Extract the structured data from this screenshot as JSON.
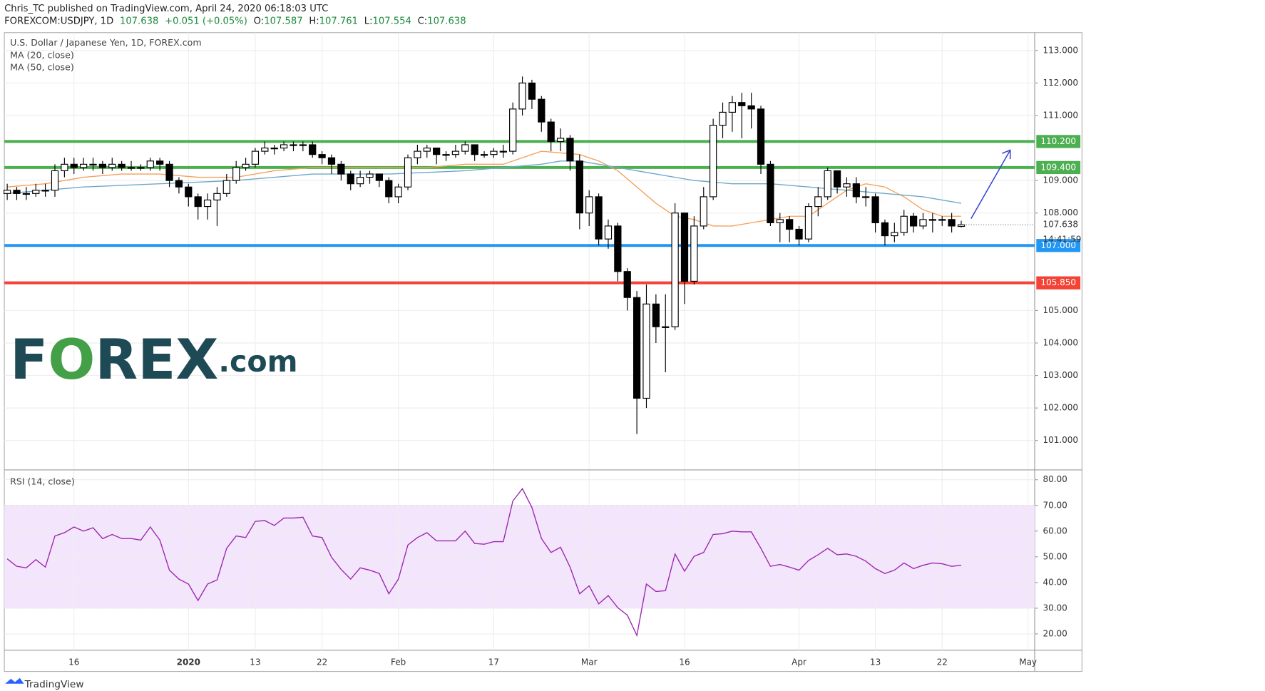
{
  "header": {
    "publisher": "Chris_TC published on TradingView.com, April 24, 2020 06:18:03 UTC",
    "symbol": "FOREXCOM:USDJPY, 1D",
    "change": "+0.051 (+0.05%)",
    "ohlc_labels": [
      "O:",
      "H:",
      "L:",
      "C:"
    ]
  },
  "logo": [
    "F",
    "O",
    "REX",
    ".com"
  ],
  "footer": "TradingView",
  "chart_data": [
    {
      "type": "candlestick",
      "title": "U.S. Dollar / Japanese Yen, 1D, FOREX.com",
      "open": [
        108.6,
        108.7,
        108.6,
        108.6,
        108.7,
        108.7,
        109.3,
        109.5,
        109.4,
        109.5,
        109.5,
        109.4,
        109.5,
        109.4,
        109.4,
        109.4,
        109.6,
        109.5,
        109.0,
        108.8,
        108.5,
        108.2,
        108.4,
        108.6,
        109.0,
        109.4,
        109.5,
        109.9,
        110.0,
        110.0,
        110.1,
        110.1,
        110.1,
        109.8,
        109.7,
        109.5,
        109.2,
        108.9,
        109.1,
        109.2,
        109.0,
        108.5,
        108.8,
        109.7,
        109.9,
        110.0,
        109.8,
        109.8,
        109.9,
        110.1,
        109.8,
        109.8,
        109.9,
        109.9,
        111.2,
        112.0,
        111.5,
        110.8,
        110.2,
        110.3,
        109.6,
        108.0,
        108.5,
        107.2,
        107.6,
        106.2,
        105.4,
        102.3,
        105.2,
        104.5,
        104.5,
        108.0,
        105.9,
        107.6,
        108.5,
        110.7,
        111.1,
        111.4,
        111.3,
        111.2,
        109.5,
        107.7,
        107.8,
        107.5,
        107.2,
        108.2,
        108.5,
        109.3,
        108.8,
        108.9,
        108.5,
        108.5,
        107.7,
        107.3,
        107.4,
        107.9,
        107.6,
        107.8,
        107.8,
        107.8,
        107.587
      ],
      "high": [
        108.9,
        108.8,
        108.8,
        108.9,
        108.9,
        109.5,
        109.7,
        109.7,
        109.7,
        109.7,
        109.6,
        109.7,
        109.6,
        109.6,
        109.5,
        109.7,
        109.7,
        109.6,
        109.1,
        108.9,
        108.6,
        108.6,
        108.8,
        109.2,
        109.6,
        109.7,
        110.0,
        110.2,
        110.1,
        110.2,
        110.2,
        110.2,
        110.2,
        109.9,
        109.8,
        109.6,
        109.3,
        109.3,
        109.3,
        109.2,
        109.1,
        108.9,
        109.8,
        110.1,
        110.1,
        110.0,
        109.9,
        110.1,
        110.2,
        110.1,
        109.9,
        110.0,
        110.1,
        111.4,
        112.2,
        112.1,
        111.6,
        110.9,
        110.6,
        110.4,
        109.8,
        108.7,
        108.6,
        107.8,
        107.7,
        106.3,
        105.6,
        105.8,
        105.5,
        105.5,
        108.3,
        108.0,
        107.9,
        108.8,
        110.9,
        111.4,
        111.6,
        111.7,
        111.7,
        111.3,
        109.6,
        108.0,
        107.9,
        107.6,
        108.3,
        108.8,
        109.4,
        109.3,
        109.1,
        109.1,
        108.8,
        108.6,
        107.8,
        107.7,
        108.1,
        108.0,
        108.0,
        108.0,
        107.9,
        108.0,
        107.761
      ],
      "low": [
        108.4,
        108.4,
        108.4,
        108.5,
        108.5,
        108.5,
        109.1,
        109.2,
        109.3,
        109.3,
        109.2,
        109.3,
        109.3,
        109.3,
        109.3,
        109.3,
        109.3,
        108.8,
        108.6,
        108.2,
        107.8,
        107.8,
        107.6,
        108.5,
        108.9,
        109.3,
        109.4,
        109.8,
        109.8,
        109.9,
        109.9,
        109.9,
        109.7,
        109.5,
        109.2,
        109.0,
        108.7,
        108.8,
        108.9,
        108.8,
        108.3,
        108.3,
        108.7,
        109.5,
        109.7,
        109.5,
        109.6,
        109.7,
        109.8,
        109.6,
        109.7,
        109.7,
        109.7,
        109.8,
        111.0,
        111.2,
        110.5,
        109.9,
        109.9,
        109.3,
        107.5,
        107.6,
        107.0,
        106.9,
        105.9,
        105.0,
        101.2,
        102.0,
        104.0,
        103.1,
        104.4,
        105.2,
        105.8,
        107.5,
        108.4,
        110.3,
        110.5,
        110.3,
        110.6,
        109.2,
        107.6,
        107.1,
        107.1,
        107.0,
        107.1,
        107.9,
        108.4,
        108.6,
        108.5,
        108.3,
        108.2,
        107.4,
        107.0,
        107.1,
        107.3,
        107.4,
        107.5,
        107.4,
        107.6,
        107.4,
        107.554
      ],
      "close": [
        108.7,
        108.6,
        108.6,
        108.7,
        108.7,
        109.3,
        109.5,
        109.4,
        109.5,
        109.5,
        109.4,
        109.5,
        109.4,
        109.4,
        109.4,
        109.6,
        109.5,
        109.0,
        108.8,
        108.5,
        108.2,
        108.4,
        108.6,
        109.0,
        109.4,
        109.5,
        109.9,
        110.0,
        110.0,
        110.1,
        110.1,
        110.1,
        109.8,
        109.7,
        109.5,
        109.2,
        108.9,
        109.1,
        109.2,
        109.0,
        108.5,
        108.8,
        109.7,
        109.9,
        110.0,
        109.8,
        109.8,
        109.9,
        110.1,
        109.8,
        109.8,
        109.9,
        109.9,
        111.2,
        112.0,
        111.5,
        110.8,
        110.2,
        110.3,
        109.6,
        108.0,
        108.5,
        107.2,
        107.6,
        106.2,
        105.4,
        102.3,
        105.2,
        104.5,
        104.5,
        108.0,
        105.9,
        107.6,
        108.5,
        110.7,
        111.1,
        111.4,
        111.3,
        111.2,
        109.5,
        107.7,
        107.8,
        107.5,
        107.2,
        108.2,
        108.5,
        109.3,
        108.8,
        108.9,
        108.5,
        108.5,
        107.7,
        107.3,
        107.4,
        107.9,
        107.6,
        107.8,
        107.8,
        107.8,
        107.6,
        107.638
      ],
      "up_color": "#ffffff",
      "down_color": "#000000",
      "series": [
        {
          "name": "MA (20, close)",
          "color": "#f5a05a",
          "x": [
            0,
            4,
            8,
            12,
            16,
            20,
            24,
            28,
            32,
            36,
            40,
            44,
            48,
            52,
            56,
            60,
            62,
            64,
            66,
            68,
            70,
            72,
            74,
            76,
            78,
            80,
            82,
            84,
            86,
            88,
            90,
            92,
            94,
            96,
            98,
            100
          ],
          "values": [
            108.8,
            108.9,
            109.1,
            109.2,
            109.2,
            109.1,
            109.1,
            109.3,
            109.4,
            109.4,
            109.4,
            109.4,
            109.5,
            109.5,
            109.9,
            109.8,
            109.6,
            109.3,
            108.8,
            108.3,
            107.9,
            107.8,
            107.6,
            107.6,
            107.7,
            107.8,
            107.9,
            107.9,
            108.3,
            108.7,
            108.9,
            108.8,
            108.5,
            108.1,
            107.9,
            107.9
          ]
        },
        {
          "name": "MA (50, close)",
          "color": "#6fa8c8",
          "x": [
            0,
            8,
            16,
            24,
            32,
            40,
            48,
            52,
            56,
            58,
            60,
            64,
            68,
            72,
            76,
            80,
            84,
            88,
            92,
            96,
            100
          ],
          "values": [
            108.6,
            108.8,
            108.9,
            109.0,
            109.2,
            109.2,
            109.3,
            109.4,
            109.5,
            109.6,
            109.6,
            109.4,
            109.2,
            109.0,
            108.9,
            108.9,
            108.8,
            108.7,
            108.6,
            108.5,
            108.3
          ]
        }
      ],
      "levels": [
        {
          "value": 110.2,
          "label": "110.200",
          "color": "#4caf50"
        },
        {
          "value": 109.4,
          "label": "109.400",
          "color": "#4caf50"
        },
        {
          "value": 107,
          "label": "107.000",
          "color": "#2196f3"
        },
        {
          "value": 105.85,
          "label": "105.850",
          "color": "#f44336"
        }
      ],
      "countdown": "14:41:59",
      "ylim": [
        100.12,
        113.55
      ],
      "yticks": [
        {
          "value": 113,
          "label": "113.000"
        },
        {
          "value": 112,
          "label": "112.000"
        },
        {
          "value": 111,
          "label": "111.000"
        },
        {
          "value": 109,
          "label": "109.000"
        },
        {
          "value": 108,
          "label": "108.000"
        },
        {
          "value": 105,
          "label": "105.000"
        },
        {
          "value": 104,
          "label": "104.000"
        },
        {
          "value": 103,
          "label": "103.000"
        },
        {
          "value": 102,
          "label": "102.000"
        },
        {
          "value": 101,
          "label": "101.000"
        }
      ],
      "grid": true
    },
    {
      "type": "line",
      "title": "RSI (14, close)",
      "series": [
        {
          "color": "#9c27b0",
          "values": [
            49.2,
            46.3,
            45.7,
            48.9,
            46.0,
            58.1,
            59.4,
            61.6,
            60.0,
            61.3,
            57.1,
            58.7,
            57.1,
            57.1,
            56.5,
            61.6,
            56.5,
            44.8,
            41.3,
            39.4,
            33.0,
            39.4,
            41.0,
            53.3,
            58.1,
            57.5,
            63.8,
            64.1,
            62.2,
            65.1,
            65.1,
            65.4,
            58.1,
            57.5,
            49.8,
            45.1,
            41.3,
            45.7,
            44.8,
            43.5,
            35.6,
            41.3,
            54.6,
            57.5,
            59.4,
            56.2,
            56.2,
            56.2,
            60.0,
            55.2,
            54.9,
            55.9,
            55.9,
            71.7,
            76.5,
            69.2,
            57.1,
            51.7,
            53.7,
            46.0,
            35.6,
            38.7,
            31.7,
            34.9,
            30.2,
            27.3,
            19.4,
            39.4,
            36.5,
            36.8,
            51.1,
            44.4,
            50.2,
            51.7,
            58.7,
            59.0,
            60.0,
            59.7,
            59.7,
            53.3,
            46.3,
            47.0,
            46.0,
            44.8,
            48.6,
            50.8,
            53.3,
            50.8,
            51.1,
            50.2,
            48.3,
            45.4,
            43.5,
            44.8,
            47.6,
            45.4,
            46.7,
            47.6,
            47.3,
            46.3,
            46.7
          ]
        }
      ],
      "band": [
        30,
        70
      ],
      "band_color": "#f3e5fb",
      "ylim": [
        13.65,
        83.5
      ],
      "yticks": [
        {
          "value": 80,
          "label": "80.00"
        },
        {
          "value": 70,
          "label": "70.00"
        },
        {
          "value": 60,
          "label": "60.00"
        },
        {
          "value": 50,
          "label": "50.00"
        },
        {
          "value": 40,
          "label": "40.00"
        },
        {
          "value": 30,
          "label": "30.00"
        },
        {
          "value": 20,
          "label": "20.00"
        }
      ],
      "xlim": [
        -0.3,
        107.7
      ],
      "xticks": [
        {
          "value": 7,
          "label": "16"
        },
        {
          "value": 19,
          "label": "2020"
        },
        {
          "value": 26,
          "label": "13"
        },
        {
          "value": 33,
          "label": "22"
        },
        {
          "value": 41,
          "label": "Feb"
        },
        {
          "value": 51,
          "label": "17"
        },
        {
          "value": 61,
          "label": "Mar"
        },
        {
          "value": 71,
          "label": "16"
        },
        {
          "value": 83,
          "label": "Apr"
        },
        {
          "value": 91,
          "label": "13"
        },
        {
          "value": 98,
          "label": "22"
        },
        {
          "value": 107,
          "label": "May"
        }
      ],
      "grid": true
    }
  ]
}
